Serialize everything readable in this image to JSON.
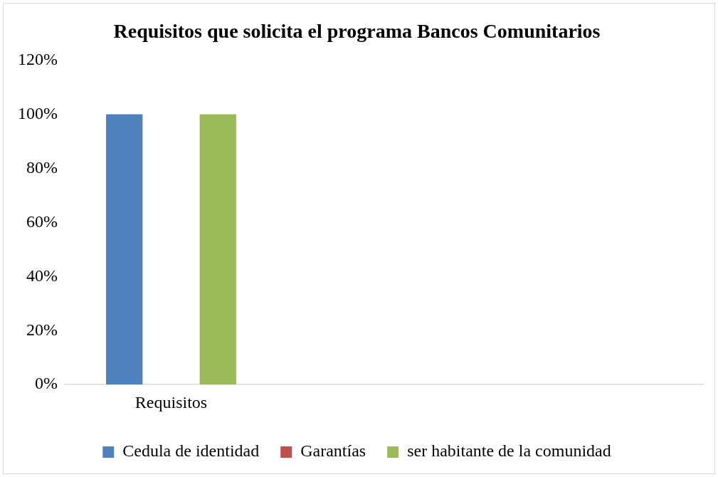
{
  "chart_data": {
    "type": "bar",
    "title": "Requisitos que solicita el programa Bancos Comunitarios",
    "categories": [
      "Requisitos",
      null,
      null
    ],
    "series": [
      {
        "name": "Cedula de identidad",
        "color": "#4f81bd",
        "values": [
          100,
          null,
          null
        ]
      },
      {
        "name": "Garantías",
        "color": "#c0504d",
        "values": [
          0,
          null,
          null
        ]
      },
      {
        "name": "ser habitante de la comunidad",
        "color": "#9bbb59",
        "values": [
          100,
          null,
          null
        ]
      }
    ],
    "ylim": [
      0,
      120
    ],
    "yticks": [
      {
        "value": 0,
        "label": "0%"
      },
      {
        "value": 20,
        "label": "20%"
      },
      {
        "value": 40,
        "label": "40%"
      },
      {
        "value": 60,
        "label": "60%"
      },
      {
        "value": 80,
        "label": "80%"
      },
      {
        "value": 100,
        "label": "100%"
      },
      {
        "value": 120,
        "label": "120%"
      }
    ],
    "grid": false,
    "legend": "bottom"
  }
}
